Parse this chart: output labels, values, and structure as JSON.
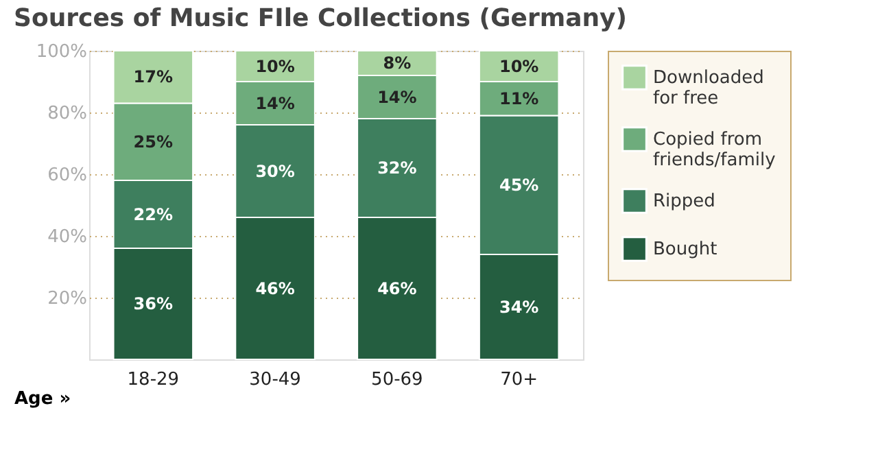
{
  "chart_data": {
    "type": "bar",
    "title": "Sources of Music FIle Collections (Germany)",
    "xlabel": "Age »",
    "categories": [
      "18-29",
      "30-49",
      "50-69",
      "70+"
    ],
    "stacked": true,
    "ylim": [
      0,
      100
    ],
    "yticks": [
      {
        "value": 20,
        "label": "20%"
      },
      {
        "value": 40,
        "label": "40%"
      },
      {
        "value": 60,
        "label": "60%"
      },
      {
        "value": 80,
        "label": "80%"
      },
      {
        "value": 100,
        "label": "100%"
      }
    ],
    "grid": "y",
    "legend": "right",
    "series": [
      {
        "name": "Bought",
        "color": "#245e40",
        "values": [
          36,
          46,
          46,
          34
        ],
        "value_labels": [
          "36%",
          "46%",
          "46%",
          "34%"
        ]
      },
      {
        "name": "Ripped",
        "color": "#3e7f5e",
        "values": [
          22,
          30,
          32,
          45
        ],
        "value_labels": [
          "22%",
          "30%",
          "32%",
          "45%"
        ]
      },
      {
        "name": "Copied from friends/family",
        "color": "#6eac7c",
        "values": [
          25,
          14,
          14,
          11
        ],
        "value_labels": [
          "25%",
          "14%",
          "14%",
          "11%"
        ]
      },
      {
        "name": "Downloaded for free",
        "color": "#a9d4a0",
        "values": [
          17,
          10,
          8,
          10
        ],
        "value_labels": [
          "17%",
          "10%",
          "8%",
          "10%"
        ]
      }
    ]
  }
}
